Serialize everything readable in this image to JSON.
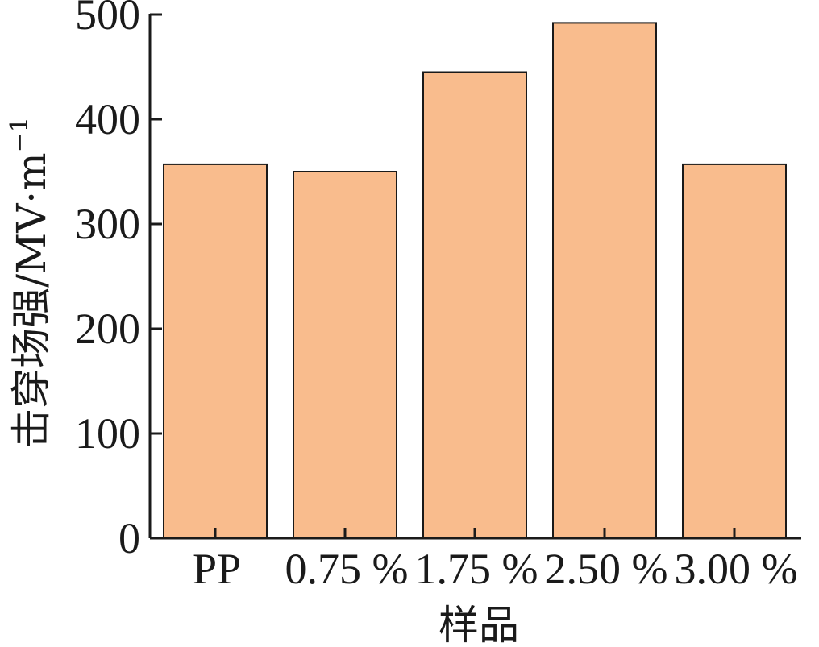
{
  "chart_data": {
    "type": "bar",
    "categories": [
      "PP",
      "0.75 %",
      "1.75 %",
      "2.50 %",
      "3.00 %"
    ],
    "values": [
      357,
      350,
      445,
      492,
      357
    ],
    "xlabel": "样品",
    "ylabel": "击穿场强/MV·m",
    "ylabel_superscript": "−1",
    "ylim": [
      0,
      500
    ],
    "yticks": [
      0,
      100,
      200,
      300,
      400,
      500
    ],
    "bar_color": "#F9BC8D",
    "grid": false,
    "legend": "none"
  }
}
